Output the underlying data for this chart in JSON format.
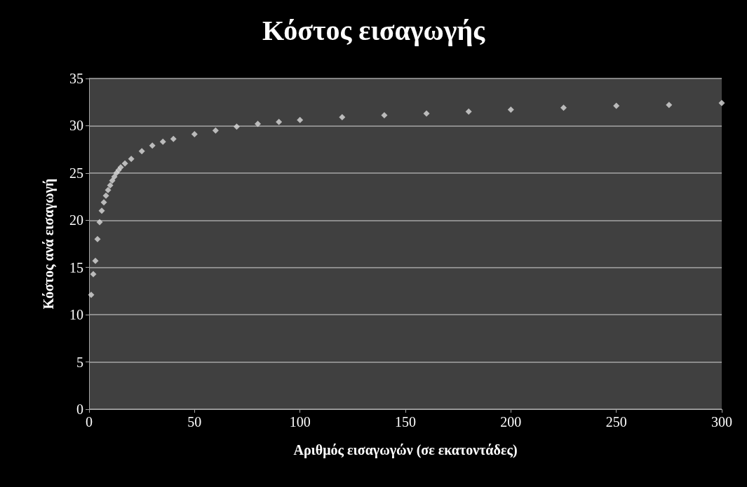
{
  "chart_data": {
    "type": "scatter",
    "title": "Κόστος εισαγωγής",
    "xlabel": "Αριθμός εισαγωγών (σε εκατοντάδες)",
    "ylabel": "Κόστος ανά εισαγωγή",
    "x": [
      1,
      2,
      3,
      4,
      5,
      6,
      7,
      8,
      9,
      10,
      11,
      12,
      13,
      14,
      15,
      17,
      20,
      25,
      30,
      35,
      40,
      50,
      60,
      70,
      80,
      90,
      100,
      120,
      140,
      160,
      180,
      200,
      225,
      250,
      275,
      300
    ],
    "values": [
      12.1,
      14.3,
      15.7,
      18.0,
      19.8,
      21.0,
      21.9,
      22.6,
      23.2,
      23.7,
      24.2,
      24.6,
      25.0,
      25.3,
      25.6,
      26.0,
      26.5,
      27.3,
      27.9,
      28.3,
      28.6,
      29.1,
      29.5,
      29.9,
      30.2,
      30.4,
      30.6,
      30.9,
      31.1,
      31.3,
      31.5,
      31.7,
      31.9,
      32.1,
      32.2,
      32.4
    ],
    "color": "#d9d9d9",
    "marker": "diamond",
    "grid": "y",
    "xlim": [
      0,
      300
    ],
    "xticks": [
      0,
      50,
      100,
      150,
      200,
      250,
      300
    ],
    "ylim": [
      0,
      35
    ],
    "yticks": [
      0,
      5,
      10,
      15,
      20,
      25,
      30,
      35
    ]
  }
}
